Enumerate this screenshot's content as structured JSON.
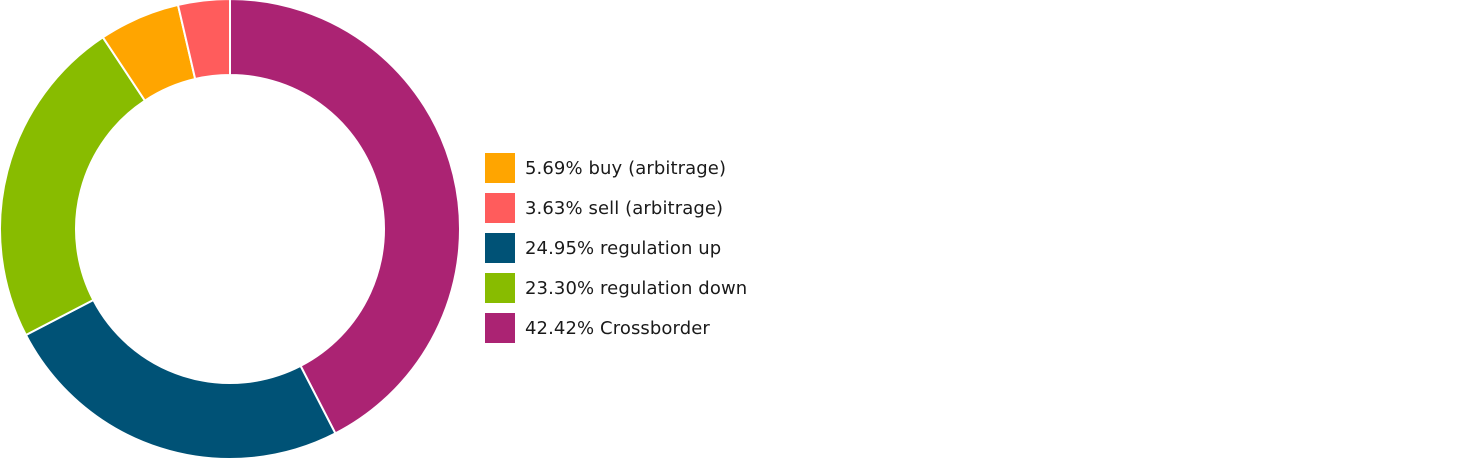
{
  "chart_data": {
    "type": "pie",
    "variant": "donut",
    "title": "",
    "start_angle_deg": 0,
    "direction": "clockwise",
    "legend_position": "right",
    "slices": [
      {
        "label": "5.69% buy (arbitrage)",
        "value": 5.69,
        "color": "#FFA500"
      },
      {
        "label": "3.63% sell (arbitrage)",
        "value": 3.63,
        "color": "#FF5C5C"
      },
      {
        "label": "24.95% regulation up",
        "value": 24.95,
        "color": "#005276"
      },
      {
        "label": "23.30% regulation down",
        "value": 23.3,
        "color": "#88BC00"
      },
      {
        "label": "42.42% Crossborder",
        "value": 42.42,
        "color": "#AB2373"
      }
    ],
    "draw_order": [
      4,
      2,
      3,
      0,
      1
    ]
  }
}
